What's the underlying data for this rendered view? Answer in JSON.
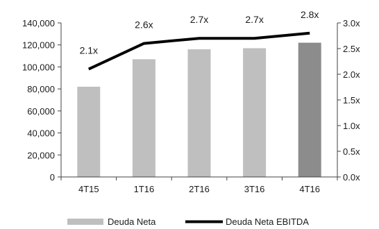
{
  "chart_data": {
    "type": "bar+line",
    "categories": [
      "4T15",
      "1T16",
      "2T16",
      "3T16",
      "4T16"
    ],
    "series": [
      {
        "name": "Deuda Neta",
        "kind": "bar",
        "axis": "left",
        "values": [
          82000,
          107000,
          116000,
          117000,
          122000
        ],
        "color": "#bfbfbf",
        "highlight_color": "#8c8c8c",
        "highlight_index": 4
      },
      {
        "name": "Deuda Neta EBITDA",
        "kind": "line",
        "axis": "right",
        "values": [
          2.1,
          2.6,
          2.7,
          2.7,
          2.8
        ],
        "labels": [
          "2.1x",
          "2.6x",
          "2.7x",
          "2.7x",
          "2.8x"
        ],
        "color": "#000000"
      }
    ],
    "y_left": {
      "min": 0,
      "max": 140000,
      "ticks": [
        0,
        20000,
        40000,
        60000,
        80000,
        100000,
        120000,
        140000
      ],
      "tick_labels": [
        "0",
        "20,000",
        "40,000",
        "60,000",
        "80,000",
        "100,000",
        "120,000",
        "140,000"
      ]
    },
    "y_right": {
      "min": 0,
      "max": 3.0,
      "ticks": [
        0,
        0.5,
        1.0,
        1.5,
        2.0,
        2.5,
        3.0
      ],
      "tick_labels": [
        "0.0x",
        "0.5x",
        "1.0x",
        "1.5x",
        "2.0x",
        "2.5x",
        "3.0x"
      ]
    },
    "grid": false,
    "legend_position": "bottom"
  }
}
